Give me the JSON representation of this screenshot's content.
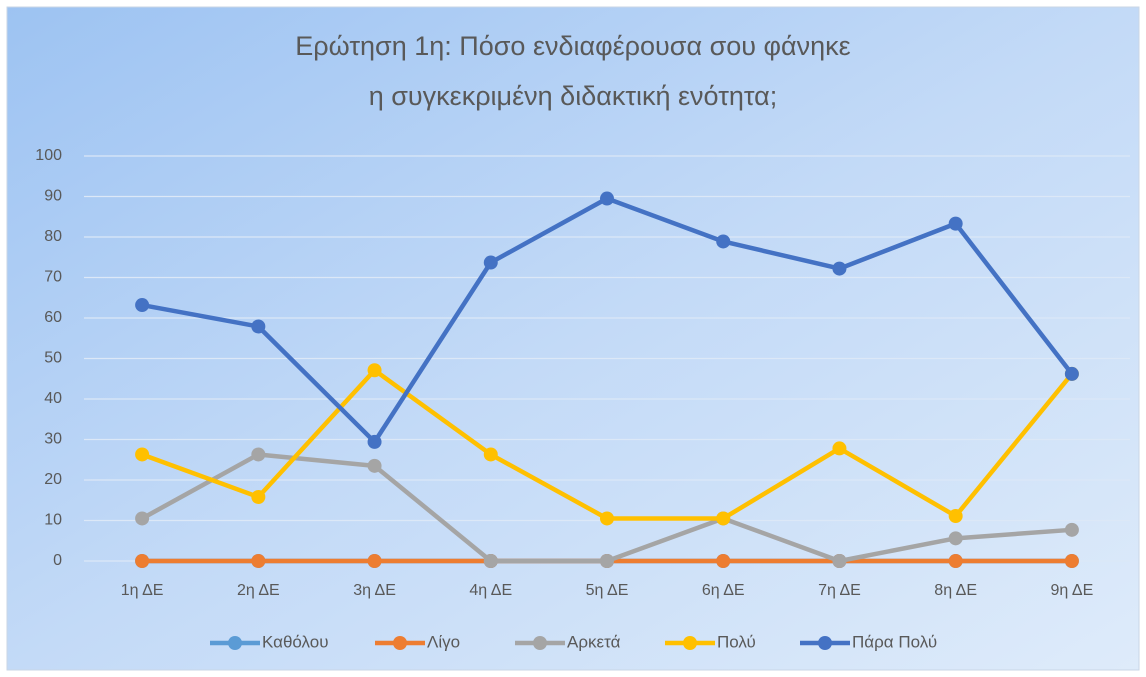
{
  "chart_data": {
    "type": "line",
    "title": [
      "Ερώτηση 1η: Πόσο ενδιαφέρουσα σου φάνηκε",
      "η συγκεκριμένη διδακτική ενότητα;"
    ],
    "categories": [
      "1η ΔΕ",
      "2η ΔΕ",
      "3η ΔΕ",
      "4η ΔΕ",
      "5η ΔΕ",
      "6η ΔΕ",
      "7η ΔΕ",
      "8η ΔΕ",
      "9η ΔΕ"
    ],
    "series": [
      {
        "name": "Καθόλου",
        "color": "#5b9bd5",
        "values": [
          0,
          0,
          0,
          0,
          0,
          0,
          0,
          0,
          0
        ]
      },
      {
        "name": "Λίγο",
        "color": "#ed7d31",
        "values": [
          0,
          0,
          0,
          0,
          0,
          0,
          0,
          0,
          0
        ]
      },
      {
        "name": "Αρκετά",
        "color": "#a5a5a5",
        "values": [
          10.5,
          26.3,
          23.5,
          0,
          0,
          10.5,
          0,
          5.6,
          7.7
        ]
      },
      {
        "name": "Πολύ",
        "color": "#ffc000",
        "values": [
          26.3,
          15.8,
          47.1,
          26.3,
          10.5,
          10.5,
          27.8,
          11.1,
          46.2
        ]
      },
      {
        "name": "Πάρα Πολύ",
        "color": "#4472c4",
        "values": [
          63.2,
          57.9,
          29.4,
          73.7,
          89.5,
          78.9,
          72.2,
          83.3,
          46.2
        ]
      }
    ],
    "ylim": [
      0,
      100
    ],
    "yticks": [
      0,
      10,
      20,
      30,
      40,
      50,
      60,
      70,
      80,
      90,
      100
    ],
    "grid": true,
    "legend": "bottom"
  }
}
